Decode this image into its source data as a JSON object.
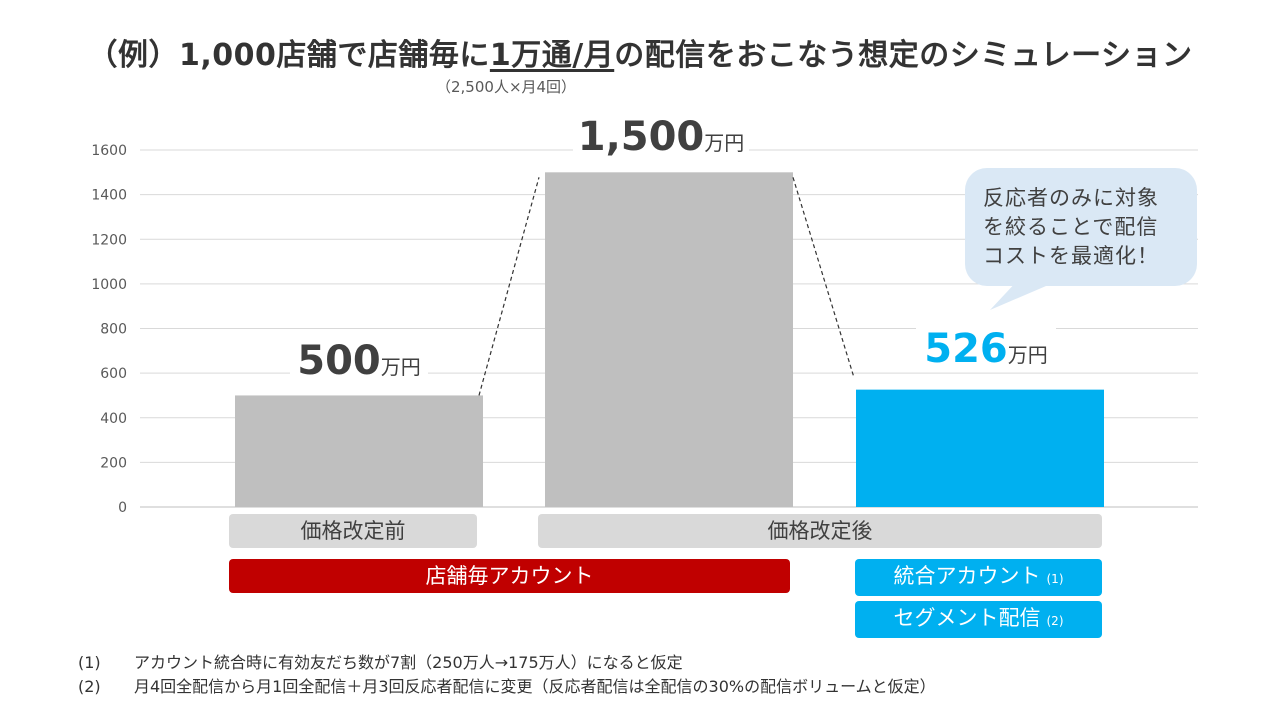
{
  "title": {
    "prefix": "（例）1,000店舗で店舗毎に",
    "underlined": "1万通/月",
    "suffix": "の配信をおこなう想定のシミュレーション"
  },
  "subtitle": "（2,500人×月4回）",
  "chart_data": {
    "type": "bar",
    "categories": [
      "価格改定前",
      "価格改定後（店舗毎アカウント）",
      "価格改定後（統合アカウント・セグメント配信）"
    ],
    "values": [
      500,
      1500,
      526
    ],
    "ylim": [
      0,
      1600
    ],
    "yticks": [
      0,
      200,
      400,
      600,
      800,
      1000,
      1200,
      1400,
      1600
    ],
    "grid": true,
    "bar_colors": [
      "#bfbfbf",
      "#bfbfbf",
      "#00b0f0"
    ],
    "data_labels": [
      {
        "value": "500",
        "unit": "万円",
        "color": "#404040"
      },
      {
        "value": "1,500",
        "unit": "万円",
        "color": "#404040"
      },
      {
        "value": "526",
        "unit": "万円",
        "color": "#00b0f0"
      }
    ]
  },
  "labels": {
    "before": "価格改定前",
    "after": "価格改定後",
    "store_account": "店舗毎アカウント",
    "integrated_account": "統合アカウント",
    "integrated_note": "(1)",
    "segment": "セグメント配信",
    "segment_note": "(2)"
  },
  "callout": {
    "lines": [
      "反応者のみに対象",
      "を絞ることで配信",
      "コストを最適化！"
    ],
    "color": "#dae8f5"
  },
  "footnotes": [
    {
      "num": "(1)",
      "text": "アカウント統合時に有効友だち数が7割（250万人→175万人）になると仮定"
    },
    {
      "num": "(2)",
      "text": "月4回全配信から月1回全配信＋月3回反応者配信に変更（反応者配信は全配信の30%の配信ボリュームと仮定）"
    }
  ]
}
